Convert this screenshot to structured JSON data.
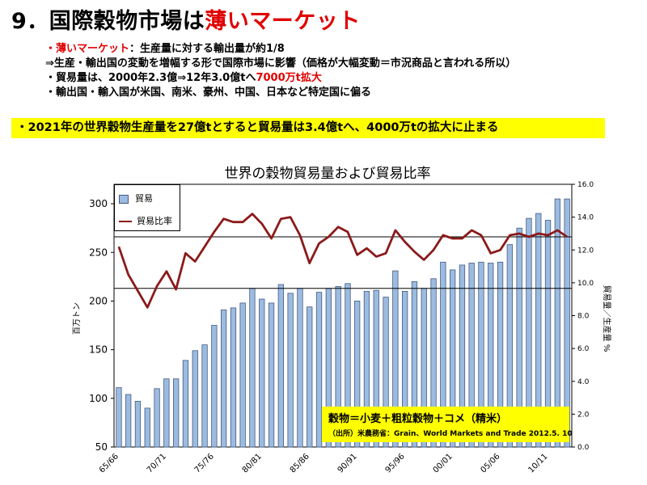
{
  "slide": {
    "title_prefix": "9．国際穀物市場は",
    "title_highlight": "薄いマーケット",
    "bullets": {
      "b1_red": "・薄いマーケット",
      "b1_rest": "：生産量に対する輸出量が約1/8",
      "b2": "⇒生産・輸出国の変動を増幅する形で国際市場に影響（価格が大幅変動＝市況商品と言われる所以）",
      "b3_pre": "・貿易量は、2000年2.3億⇒12年3.0億tへ",
      "b3_red": "7000万t拡大",
      "b4": "・輸出国・輸入国が米国、南米、豪州、中国、日本など特定国に偏る"
    },
    "callout": "・2021年の世界穀物生産量を27億tとすると貿易量は3.4億tへ、4000万tの拡大に止まる",
    "note": {
      "main": "穀物＝小麦＋粗粒穀物＋コメ（精米）",
      "source": "（出所）米農務省：Grain、World Markets and Trade 2012.5. 10"
    },
    "colors": {
      "title_highlight": "#e00000",
      "callout_bg": "#ffff00",
      "bar_fill": "#9cbbe0",
      "line_color": "#8b1a1a"
    }
  },
  "chart_data": {
    "type": "bar",
    "title": "世界の穀物貿易量および貿易比率",
    "ylabel_left": "百万トン",
    "ylabel_right": "貿易量／生産量 %",
    "categories": [
      "65/66",
      "66/67",
      "67/68",
      "68/69",
      "69/70",
      "70/71",
      "71/72",
      "72/73",
      "73/74",
      "74/75",
      "75/76",
      "76/77",
      "77/78",
      "78/79",
      "79/80",
      "80/81",
      "81/82",
      "82/83",
      "83/84",
      "84/85",
      "85/86",
      "86/87",
      "87/88",
      "88/89",
      "89/90",
      "90/91",
      "91/92",
      "92/93",
      "93/94",
      "94/95",
      "95/96",
      "96/97",
      "97/98",
      "98/99",
      "99/00",
      "00/01",
      "01/02",
      "02/03",
      "03/04",
      "04/05",
      "05/06",
      "06/07",
      "07/08",
      "08/09",
      "09/10",
      "10/11",
      "11/12",
      "12/13"
    ],
    "x_tick_labels": [
      "65/66",
      "70/71",
      "75/76",
      "80/81",
      "85/86",
      "90/91",
      "95/96",
      "00/01",
      "05/06",
      "10/11"
    ],
    "series": [
      {
        "name": "貿易",
        "axis": "left",
        "values": [
          111,
          104,
          97,
          90,
          110,
          120,
          120,
          139,
          149,
          155,
          175,
          191,
          193,
          198,
          213,
          202,
          198,
          217,
          208,
          213,
          194,
          209,
          213,
          215,
          218,
          200,
          210,
          211,
          204,
          231,
          210,
          220,
          213,
          223,
          240,
          232,
          237,
          239,
          240,
          239,
          240,
          258,
          275,
          285,
          290,
          283,
          305,
          305
        ]
      },
      {
        "name": "貿易比率",
        "axis": "right",
        "values": [
          12.2,
          10.5,
          9.5,
          8.5,
          9.8,
          10.7,
          9.6,
          11.8,
          11.3,
          12.2,
          13.1,
          13.9,
          13.7,
          13.7,
          14.2,
          13.6,
          12.7,
          13.9,
          14.0,
          12.9,
          11.2,
          12.4,
          12.8,
          13.4,
          13.1,
          11.7,
          12.1,
          11.6,
          11.8,
          13.2,
          12.5,
          11.9,
          11.4,
          12.0,
          12.9,
          12.7,
          12.7,
          13.2,
          12.9,
          11.8,
          12.0,
          12.9,
          13.0,
          12.8,
          13.0,
          12.9,
          13.2,
          12.8
        ]
      }
    ],
    "ylim_left": [
      50,
      320
    ],
    "ylim_right": [
      0,
      16
    ],
    "yticks_left": [
      50,
      100,
      150,
      200,
      250,
      300
    ],
    "yticks_right": [
      0.0,
      2.0,
      4.0,
      6.0,
      8.0,
      10.0,
      12.0,
      14.0,
      16.0
    ],
    "reference_lines": [
      {
        "axis": "left",
        "value": 213
      },
      {
        "axis": "right",
        "value": 12.8
      }
    ],
    "legend_position": "top-left",
    "grid": false
  }
}
